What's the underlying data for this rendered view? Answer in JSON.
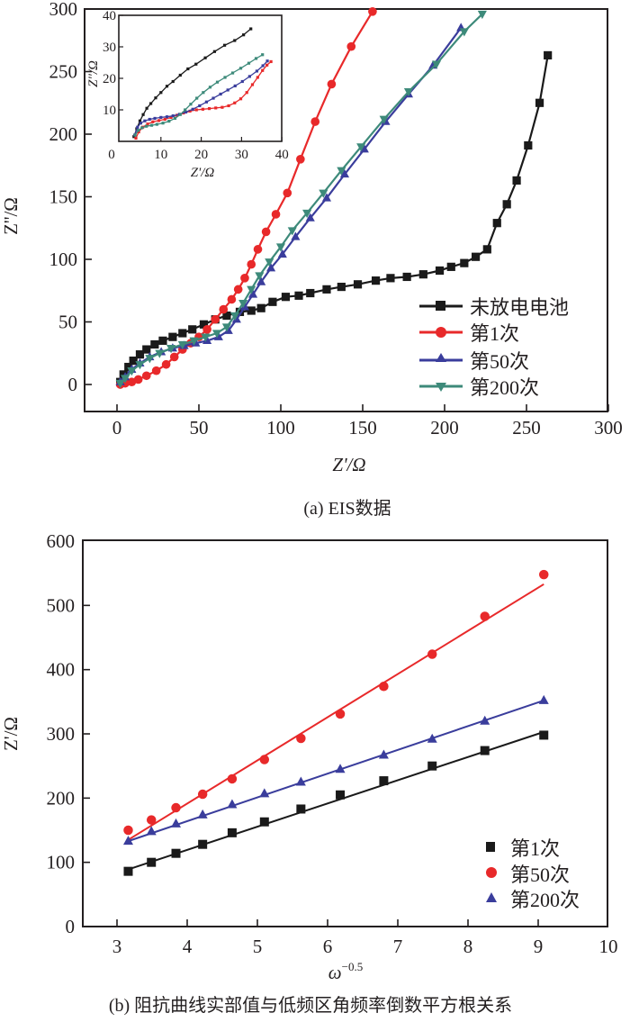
{
  "chart_data": [
    {
      "type": "line",
      "panel": "a",
      "caption": "(a) EIS数据",
      "xlabel": "Z'/Ω",
      "ylabel": "Z''/Ω",
      "xlim": [
        -9,
        300
      ],
      "ylim": [
        -22,
        300
      ],
      "xticks": [
        "0",
        "50",
        "100",
        "150",
        "200",
        "250",
        "300"
      ],
      "yticks": [
        "0",
        "50",
        "100",
        "150",
        "200",
        "250",
        "300"
      ],
      "legend_position": "bottom-right",
      "grid": false,
      "series": [
        {
          "name": "未放电电池",
          "color": "#1a1a1a",
          "marker": "square",
          "x": [
            2,
            4,
            7,
            10,
            14,
            18,
            23,
            28,
            34,
            40,
            46,
            53,
            60,
            67,
            75,
            82,
            88,
            95,
            103,
            111,
            118,
            128,
            137,
            147,
            158,
            167,
            177,
            187,
            197,
            204,
            212,
            219,
            226,
            232,
            238,
            244,
            251,
            258,
            263
          ],
          "y": [
            2,
            8,
            14,
            19,
            24,
            28,
            32,
            35,
            38,
            41,
            44,
            48,
            52,
            55,
            58,
            59,
            61,
            66,
            70,
            71,
            73,
            76,
            78,
            80,
            83,
            85,
            86,
            88,
            91,
            94,
            97,
            102,
            108,
            129,
            144,
            163,
            191,
            225,
            263
          ]
        },
        {
          "name": "第1次",
          "color": "#e8292a",
          "marker": "circle",
          "x": [
            2,
            5,
            9,
            13,
            18,
            24,
            30,
            35,
            40,
            45,
            50,
            55,
            60,
            65,
            70,
            74,
            78,
            82,
            86,
            91,
            97,
            104,
            112,
            121,
            131,
            143,
            156
          ],
          "y": [
            0,
            1,
            2,
            4,
            7,
            11,
            16,
            22,
            28,
            33,
            38,
            44,
            52,
            60,
            68,
            76,
            85,
            96,
            108,
            122,
            136,
            153,
            180,
            210,
            240,
            270,
            298
          ]
        },
        {
          "name": "第50次",
          "color": "#3a3d9c",
          "marker": "triangle-up",
          "x": [
            2,
            5,
            9,
            14,
            20,
            27,
            34,
            41,
            48,
            55,
            62,
            68,
            73,
            78,
            83,
            88,
            94,
            101,
            109,
            118,
            128,
            139,
            151,
            164,
            178,
            193,
            210
          ],
          "y": [
            2,
            6,
            12,
            17,
            22,
            26,
            29,
            31,
            33,
            35,
            38,
            43,
            52,
            62,
            72,
            82,
            93,
            104,
            118,
            133,
            149,
            168,
            188,
            210,
            232,
            255,
            285
          ]
        },
        {
          "name": "第200次",
          "color": "#3d8a7a",
          "marker": "triangle-down",
          "x": [
            2,
            5,
            9,
            14,
            20,
            26,
            33,
            40,
            47,
            54,
            61,
            67,
            72,
            77,
            82,
            87,
            93,
            100,
            107,
            116,
            126,
            137,
            149,
            163,
            178,
            195,
            212,
            223
          ],
          "y": [
            1,
            5,
            11,
            16,
            21,
            25,
            29,
            32,
            35,
            38,
            41,
            46,
            55,
            65,
            76,
            87,
            98,
            110,
            123,
            137,
            153,
            171,
            190,
            212,
            234,
            256,
            282,
            296
          ]
        }
      ],
      "inset": {
        "xlabel": "Z'/Ω",
        "ylabel": "Z''/Ω",
        "xlim": [
          0,
          40
        ],
        "ylim": [
          0,
          40
        ],
        "xticks": [
          "0",
          "10",
          "20",
          "30",
          "40"
        ],
        "yticks": [
          "10",
          "20",
          "30",
          "40"
        ],
        "series": [
          {
            "name": "未放电电池",
            "color": "#1a1a1a",
            "x": [
              3.3,
              4,
              4.8,
              5.6,
              6.5,
              7.5,
              8.7,
              10,
              11.5,
              13,
              14.8,
              16.7,
              18.7,
              21,
              23.3,
              25.8,
              28.3,
              30.5,
              32.3
            ],
            "y": [
              1.5,
              4,
              6.5,
              8.5,
              10.5,
              12,
              13.8,
              15.5,
              17.5,
              19,
              21,
              23,
              24.5,
              26.5,
              28.5,
              30.5,
              32,
              33.8,
              35.7
            ]
          },
          {
            "name": "第1次",
            "color": "#e8292a",
            "x": [
              3.8,
              4.5,
              5.5,
              6.7,
              8,
              9.5,
              11,
              12.5,
              14,
              15.6,
              17.2,
              18.8,
              20.4,
              22,
              23.6,
              25.2,
              26.8,
              28.3,
              29.8,
              31.3,
              32.7,
              34,
              35.2,
              36.3,
              37.3
            ],
            "y": [
              1,
              3,
              4.5,
              5.5,
              6.2,
              6.6,
              7,
              7.6,
              8.3,
              9,
              9.6,
              10,
              10.2,
              10.4,
              10.6,
              10.8,
              11.3,
              12.2,
              13.5,
              15.5,
              18,
              20.3,
              22.5,
              24.2,
              25.3
            ]
          },
          {
            "name": "第50次",
            "color": "#3a3d9c",
            "x": [
              3.5,
              4.2,
              5,
              6,
              7.2,
              8.5,
              10,
              11.5,
              13,
              14.6,
              16.2,
              17.9,
              19.6,
              21.3,
              23,
              24.8,
              26.6,
              28.4,
              30.2,
              32,
              33.8,
              35.3,
              36.4
            ],
            "y": [
              2,
              4.5,
              5.8,
              6.5,
              7,
              7.3,
              7.6,
              7.8,
              8.1,
              8.6,
              9.3,
              10.2,
              11.3,
              12.5,
              13.7,
              15,
              16.3,
              17.6,
              19,
              20.6,
              22.3,
              24,
              25.5
            ]
          },
          {
            "name": "第200次",
            "color": "#3d8a7a",
            "x": [
              3.6,
              4.4,
              5.3,
              6.4,
              7.7,
              9,
              10.5,
              12,
              13.5,
              14.8,
              16,
              17.4,
              18.9,
              20.5,
              22.2,
              24,
              25.9,
              27.8,
              29.8,
              31.8,
              33.6,
              35.2
            ],
            "y": [
              2,
              3.5,
              4.3,
              4.8,
              5.1,
              5.4,
              5.8,
              6.4,
              7.3,
              8.5,
              10,
              11.8,
              13.7,
              15.5,
              17.2,
              18.8,
              20.3,
              21.7,
              23.2,
              24.8,
              26.3,
              27.5
            ]
          }
        ]
      }
    },
    {
      "type": "scatter",
      "panel": "b",
      "caption": "(b) 阻抗曲线实部值与低频区角频率倒数平方根关系",
      "xlabel_base": "ω",
      "xlabel_exp": "−0.5",
      "ylabel": "Z'/Ω",
      "xlim": [
        2.5,
        10
      ],
      "ylim": [
        0,
        600
      ],
      "xticks": [
        "3",
        "4",
        "5",
        "6",
        "7",
        "8",
        "9",
        "10"
      ],
      "yticks": [
        "0",
        "100",
        "200",
        "300",
        "400",
        "500",
        "600"
      ],
      "legend_position": "bottom-right",
      "grid": false,
      "x": [
        3.16,
        3.49,
        3.84,
        4.22,
        4.64,
        5.1,
        5.62,
        6.18,
        6.8,
        7.49,
        8.24,
        9.08
      ],
      "series": [
        {
          "name": "第1次",
          "color": "#1a1a1a",
          "marker": "square",
          "values": [
            86,
            100,
            114,
            128,
            146,
            163,
            183,
            205,
            227,
            250,
            274,
            298
          ],
          "fit": [
            3.16,
            89,
            9.08,
            303
          ]
        },
        {
          "name": "第50次",
          "color": "#e8292a",
          "marker": "circle",
          "values": [
            150,
            166,
            185,
            206,
            230,
            260,
            293,
            331,
            374,
            424,
            483,
            548
          ],
          "fit": [
            3.16,
            135,
            9.08,
            533
          ]
        },
        {
          "name": "第200次",
          "color": "#3a3d9c",
          "marker": "triangle-up",
          "values": [
            133,
            148,
            160,
            174,
            190,
            207,
            225,
            245,
            267,
            292,
            320,
            352
          ],
          "fit": [
            3.16,
            133,
            9.08,
            352
          ]
        }
      ]
    }
  ]
}
